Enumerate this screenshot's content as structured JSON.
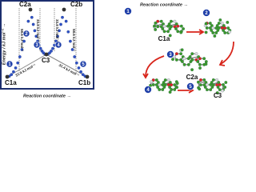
{
  "plot": {
    "y_axis_label": "Energy / kJ mol⁻¹ →",
    "x_axis_label": "Reaction coordinate →",
    "states": [
      "C1a",
      "C2a",
      "C3",
      "C2b",
      "C1b"
    ],
    "barriers": [
      "58.6 kJ mol⁻¹",
      "33.8 kJ mol⁻¹",
      "33.8 kJ mol⁻¹",
      "58.6 kJ mol⁻¹"
    ],
    "differences": [
      "31.4 kJ mol⁻¹",
      "31.4 kJ mol⁻¹"
    ],
    "steps": [
      "1",
      "2",
      "3",
      "4",
      "5"
    ]
  },
  "structures": {
    "x_axis_label": "Reaction coordinate →",
    "items": [
      {
        "step": "1",
        "label": "C1a"
      },
      {
        "step": "2"
      },
      {
        "step": "3",
        "label": "C2a"
      },
      {
        "step": "4"
      },
      {
        "step": "5",
        "label": "C3"
      }
    ]
  }
}
